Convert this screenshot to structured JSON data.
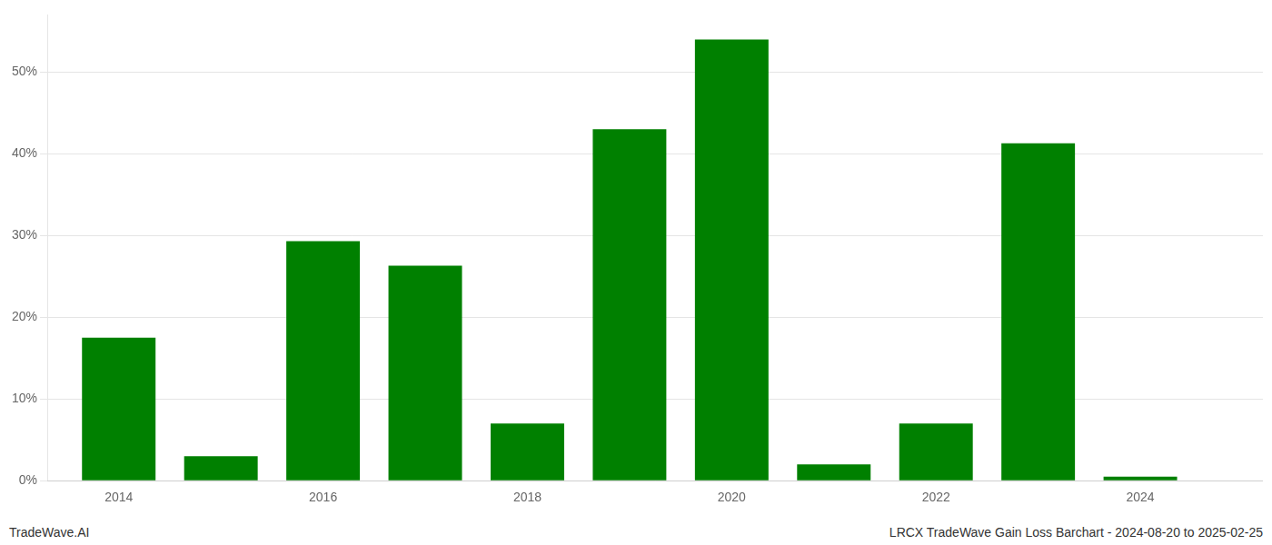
{
  "chart_data": {
    "type": "bar",
    "x": [
      2014,
      2015,
      2016,
      2017,
      2018,
      2019,
      2020,
      2021,
      2022,
      2023,
      2024
    ],
    "values": [
      17.5,
      3.0,
      29.3,
      26.3,
      7.0,
      43.0,
      54.0,
      2.0,
      7.0,
      41.3,
      0.5
    ],
    "color": "#008000",
    "xlim": [
      2013.3,
      2025.2
    ],
    "xticks": [
      2014,
      2016,
      2018,
      2020,
      2022,
      2024
    ],
    "ylim": [
      0,
      57
    ],
    "yticks": [
      {
        "value": 0,
        "label": "0%"
      },
      {
        "value": 10,
        "label": "10%"
      },
      {
        "value": 20,
        "label": "20%"
      },
      {
        "value": 30,
        "label": "30%"
      },
      {
        "value": 40,
        "label": "40%"
      },
      {
        "value": 50,
        "label": "50%"
      }
    ],
    "grid": true,
    "annotations": [
      "TradeWave.AI",
      "LRCX TradeWave Gain Loss Barchart - 2024-08-20 to 2025-02-25"
    ]
  }
}
